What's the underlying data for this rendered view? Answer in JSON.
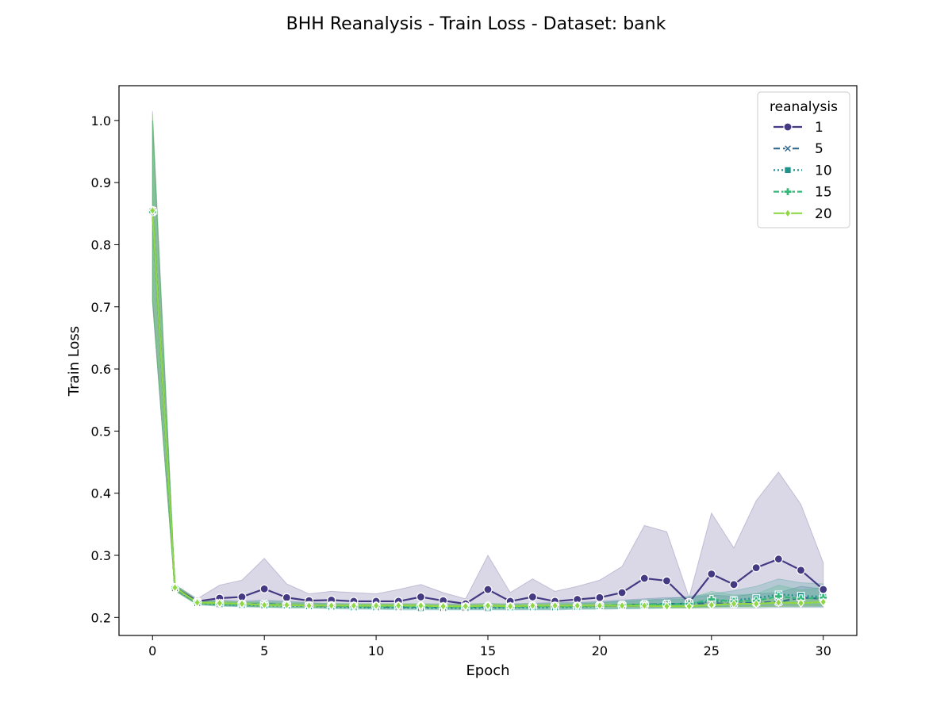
{
  "chart_data": {
    "type": "line",
    "title": "BHH Reanalysis - Train Loss - Dataset: bank",
    "xlabel": "Epoch",
    "ylabel": "Train Loss",
    "xlim": [
      -1.5,
      31.5
    ],
    "ylim": [
      0.171,
      1.056
    ],
    "xticks": [
      0,
      5,
      10,
      15,
      20,
      25,
      30
    ],
    "yticks": [
      0.2,
      0.3,
      0.4,
      0.5,
      0.6,
      0.7,
      0.8,
      0.9,
      1.0
    ],
    "ytick_labels": [
      "0.2",
      "0.3",
      "0.4",
      "0.5",
      "0.6",
      "0.7",
      "0.8",
      "0.9",
      "1.0"
    ],
    "grid": false,
    "legend": {
      "title": "reanalysis",
      "placement": "top-right"
    },
    "x": [
      0,
      1,
      2,
      3,
      4,
      5,
      6,
      7,
      8,
      9,
      10,
      11,
      12,
      13,
      14,
      15,
      16,
      17,
      18,
      19,
      20,
      21,
      22,
      23,
      24,
      25,
      26,
      27,
      28,
      29,
      30
    ],
    "series": [
      {
        "name": "1",
        "color": "#443a83",
        "dash": "",
        "marker": "circle",
        "values": [
          0.855,
          0.248,
          0.226,
          0.231,
          0.233,
          0.246,
          0.232,
          0.227,
          0.228,
          0.226,
          0.226,
          0.226,
          0.233,
          0.227,
          0.222,
          0.245,
          0.226,
          0.233,
          0.226,
          0.229,
          0.232,
          0.24,
          0.263,
          0.259,
          0.224,
          0.27,
          0.253,
          0.28,
          0.294,
          0.276,
          0.245
        ],
        "lower": [
          0.705,
          0.243,
          0.222,
          0.22,
          0.218,
          0.219,
          0.219,
          0.219,
          0.219,
          0.218,
          0.218,
          0.217,
          0.216,
          0.216,
          0.215,
          0.217,
          0.217,
          0.217,
          0.217,
          0.217,
          0.217,
          0.217,
          0.217,
          0.217,
          0.217,
          0.218,
          0.218,
          0.218,
          0.218,
          0.218,
          0.218
        ],
        "upper": [
          1.015,
          0.253,
          0.23,
          0.252,
          0.26,
          0.295,
          0.254,
          0.238,
          0.242,
          0.24,
          0.238,
          0.245,
          0.253,
          0.24,
          0.23,
          0.3,
          0.24,
          0.262,
          0.242,
          0.25,
          0.26,
          0.282,
          0.348,
          0.338,
          0.232,
          0.368,
          0.312,
          0.388,
          0.434,
          0.382,
          0.288
        ]
      },
      {
        "name": "5",
        "color": "#31688e",
        "dash": "8,4",
        "marker": "x",
        "values": [
          0.853,
          0.247,
          0.224,
          0.223,
          0.221,
          0.222,
          0.22,
          0.219,
          0.218,
          0.218,
          0.217,
          0.217,
          0.217,
          0.217,
          0.217,
          0.217,
          0.217,
          0.218,
          0.218,
          0.218,
          0.219,
          0.22,
          0.221,
          0.222,
          0.222,
          0.223,
          0.222,
          0.224,
          0.225,
          0.232,
          0.23
        ],
        "lower": [
          0.71,
          0.243,
          0.221,
          0.219,
          0.218,
          0.217,
          0.216,
          0.216,
          0.215,
          0.215,
          0.214,
          0.214,
          0.214,
          0.213,
          0.213,
          0.213,
          0.213,
          0.213,
          0.213,
          0.214,
          0.214,
          0.214,
          0.215,
          0.215,
          0.215,
          0.215,
          0.215,
          0.215,
          0.216,
          0.216,
          0.216
        ],
        "upper": [
          1.0,
          0.252,
          0.228,
          0.228,
          0.226,
          0.228,
          0.226,
          0.224,
          0.222,
          0.222,
          0.222,
          0.222,
          0.222,
          0.222,
          0.222,
          0.222,
          0.222,
          0.223,
          0.224,
          0.224,
          0.226,
          0.228,
          0.23,
          0.232,
          0.232,
          0.236,
          0.234,
          0.238,
          0.24,
          0.25,
          0.246
        ]
      },
      {
        "name": "10",
        "color": "#21918c",
        "dash": "2,3",
        "marker": "square",
        "values": [
          0.854,
          0.247,
          0.223,
          0.221,
          0.22,
          0.219,
          0.219,
          0.218,
          0.217,
          0.216,
          0.216,
          0.216,
          0.215,
          0.215,
          0.215,
          0.215,
          0.216,
          0.216,
          0.216,
          0.217,
          0.218,
          0.219,
          0.22,
          0.221,
          0.223,
          0.225,
          0.228,
          0.231,
          0.237,
          0.235,
          0.233
        ],
        "lower": [
          0.71,
          0.243,
          0.22,
          0.218,
          0.217,
          0.216,
          0.215,
          0.215,
          0.214,
          0.213,
          0.213,
          0.212,
          0.212,
          0.212,
          0.212,
          0.212,
          0.212,
          0.212,
          0.212,
          0.213,
          0.213,
          0.214,
          0.214,
          0.215,
          0.216,
          0.217,
          0.218,
          0.219,
          0.22,
          0.22,
          0.22
        ],
        "upper": [
          1.0,
          0.252,
          0.227,
          0.225,
          0.224,
          0.224,
          0.223,
          0.222,
          0.221,
          0.22,
          0.22,
          0.22,
          0.219,
          0.219,
          0.219,
          0.219,
          0.22,
          0.22,
          0.221,
          0.222,
          0.224,
          0.226,
          0.228,
          0.23,
          0.234,
          0.238,
          0.243,
          0.25,
          0.262,
          0.256,
          0.254
        ]
      },
      {
        "name": "15",
        "color": "#35b779",
        "dash": "7,3",
        "marker": "plus",
        "values": [
          0.853,
          0.248,
          0.224,
          0.222,
          0.221,
          0.221,
          0.22,
          0.219,
          0.219,
          0.218,
          0.218,
          0.218,
          0.218,
          0.217,
          0.217,
          0.218,
          0.217,
          0.218,
          0.218,
          0.218,
          0.219,
          0.22,
          0.221,
          0.221,
          0.222,
          0.229,
          0.226,
          0.227,
          0.234,
          0.23,
          0.232
        ],
        "lower": [
          0.71,
          0.243,
          0.221,
          0.219,
          0.218,
          0.217,
          0.216,
          0.216,
          0.215,
          0.215,
          0.214,
          0.214,
          0.214,
          0.214,
          0.214,
          0.214,
          0.214,
          0.214,
          0.214,
          0.214,
          0.215,
          0.215,
          0.215,
          0.216,
          0.216,
          0.217,
          0.217,
          0.217,
          0.218,
          0.218,
          0.218
        ],
        "upper": [
          1.0,
          0.253,
          0.228,
          0.226,
          0.225,
          0.226,
          0.225,
          0.223,
          0.223,
          0.222,
          0.222,
          0.222,
          0.222,
          0.221,
          0.221,
          0.223,
          0.221,
          0.222,
          0.223,
          0.223,
          0.224,
          0.226,
          0.228,
          0.228,
          0.23,
          0.242,
          0.236,
          0.238,
          0.252,
          0.244,
          0.248
        ]
      },
      {
        "name": "20",
        "color": "#8fd744",
        "dash": "",
        "marker": "diamond",
        "values": [
          0.855,
          0.248,
          0.224,
          0.223,
          0.222,
          0.22,
          0.22,
          0.219,
          0.219,
          0.219,
          0.219,
          0.219,
          0.219,
          0.218,
          0.218,
          0.219,
          0.218,
          0.219,
          0.219,
          0.219,
          0.219,
          0.219,
          0.219,
          0.218,
          0.218,
          0.22,
          0.222,
          0.222,
          0.224,
          0.223,
          0.225
        ],
        "lower": [
          0.71,
          0.243,
          0.221,
          0.22,
          0.219,
          0.217,
          0.217,
          0.216,
          0.216,
          0.216,
          0.216,
          0.216,
          0.216,
          0.215,
          0.215,
          0.216,
          0.215,
          0.216,
          0.216,
          0.216,
          0.216,
          0.216,
          0.216,
          0.215,
          0.215,
          0.216,
          0.217,
          0.217,
          0.218,
          0.218,
          0.219
        ],
        "upper": [
          1.01,
          0.253,
          0.227,
          0.226,
          0.225,
          0.223,
          0.223,
          0.222,
          0.222,
          0.222,
          0.222,
          0.222,
          0.222,
          0.221,
          0.221,
          0.222,
          0.221,
          0.222,
          0.222,
          0.222,
          0.222,
          0.222,
          0.222,
          0.221,
          0.221,
          0.224,
          0.227,
          0.228,
          0.23,
          0.229,
          0.232
        ]
      }
    ]
  }
}
